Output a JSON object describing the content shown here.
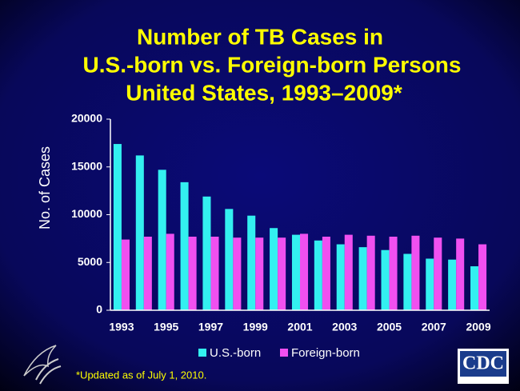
{
  "chart_data": {
    "type": "bar",
    "title": [
      "Number of TB Cases in",
      "U.S.-born vs. Foreign-born Persons",
      "United States, 1993–2009*"
    ],
    "y_label": "No. of Cases",
    "categories": [
      "1993",
      null,
      "1995",
      null,
      "1997",
      null,
      "1999",
      null,
      "2001",
      null,
      "2003",
      null,
      "2005",
      null,
      "2007",
      null,
      "2009"
    ],
    "series": [
      {
        "name": "U.S.-born",
        "color": "#33f0f0",
        "values": [
          17400,
          16200,
          14700,
          13400,
          11900,
          10600,
          9900,
          8600,
          7900,
          7300,
          6900,
          6600,
          6300,
          5900,
          5400,
          5300,
          4600
        ]
      },
      {
        "name": "Foreign-born",
        "color": "#f050f0",
        "values": [
          7400,
          7700,
          8000,
          7700,
          7700,
          7600,
          7600,
          7600,
          8000,
          7700,
          7900,
          7800,
          7700,
          7800,
          7600,
          7500,
          6900
        ]
      }
    ],
    "ylim": [
      0,
      20000
    ],
    "yticks": [
      0,
      5000,
      10000,
      15000,
      20000
    ],
    "grid": false,
    "footnote": "*Updated as of July 1, 2010.",
    "logo": "CDC"
  }
}
